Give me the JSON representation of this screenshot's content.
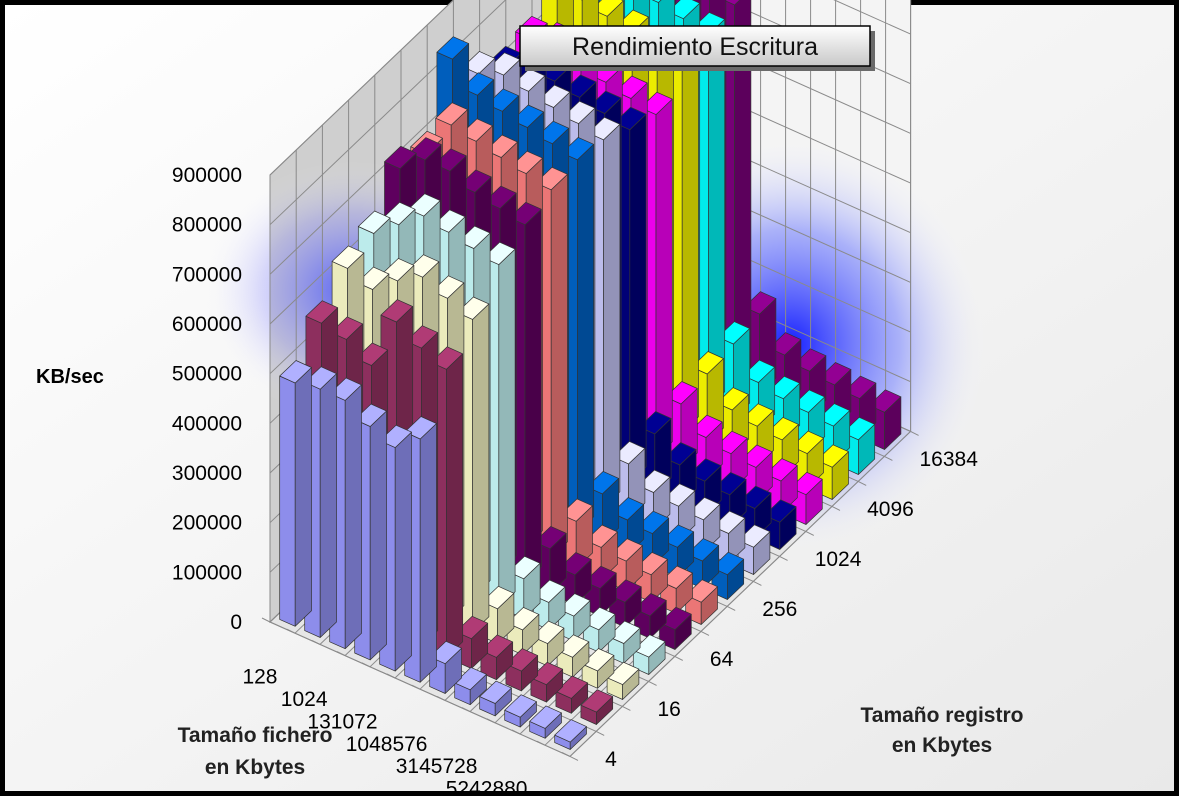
{
  "chart_data": {
    "type": "bar3d",
    "title": "Rendimiento Escritura",
    "ylabel": "KB/sec",
    "xlabel": "Tamaño fichero en Kbytes",
    "xlabel_lines": [
      "Tamaño fichero",
      "en Kbytes"
    ],
    "zlabel": "Tamaño registro en Kbytes",
    "zlabel_lines": [
      "Tamaño registro",
      "en Kbytes"
    ],
    "ylim": [
      0,
      900000
    ],
    "y_ticks": [
      "0",
      "100000",
      "200000",
      "300000",
      "400000",
      "500000",
      "600000",
      "700000",
      "800000",
      "900000"
    ],
    "file_size_labels": [
      "128",
      "1024",
      "131072",
      "1048576",
      "3145728",
      "5242880"
    ],
    "record_size_labels": [
      "4",
      "16",
      "64",
      "256",
      "1024",
      "4096",
      "16384"
    ],
    "rows": [
      {
        "record_kb": 4,
        "color": "#9999ff",
        "values": [
          490000,
          500000,
          500000,
          470000,
          450000,
          490000,
          60000,
          30000,
          25000,
          20000,
          20000,
          15000
        ]
      },
      {
        "record_kb": 8,
        "color": "#993366",
        "values": [
          560000,
          550000,
          520000,
          630000,
          600000,
          580000,
          60000,
          45000,
          40000,
          35000,
          30000,
          25000
        ]
      },
      {
        "record_kb": 16,
        "color": "#ffffcc",
        "values": [
          620000,
          600000,
          640000,
          670000,
          650000,
          630000,
          70000,
          50000,
          45000,
          40000,
          35000,
          30000
        ]
      },
      {
        "record_kb": 32,
        "color": "#ccffff",
        "values": [
          640000,
          680000,
          720000,
          710000,
          700000,
          690000,
          80000,
          55000,
          50000,
          45000,
          40000,
          35000
        ]
      },
      {
        "record_kb": 64,
        "color": "#660066",
        "values": [
          720000,
          760000,
          760000,
          740000,
          730000,
          720000,
          90000,
          60000,
          55000,
          50000,
          45000,
          40000
        ]
      },
      {
        "record_kb": 128,
        "color": "#ff8080",
        "values": [
          700000,
          780000,
          770000,
          760000,
          750000,
          740000,
          95000,
          65000,
          60000,
          55000,
          50000,
          45000
        ]
      },
      {
        "record_kb": 256,
        "color": "#0066cc",
        "values": [
          840000,
          790000,
          780000,
          770000,
          760000,
          750000,
          100000,
          70000,
          65000,
          60000,
          55000,
          50000
        ]
      },
      {
        "record_kb": 512,
        "color": "#ccccff",
        "values": [
          760000,
          780000,
          770000,
          760000,
          750000,
          740000,
          110000,
          75000,
          70000,
          65000,
          60000,
          55000
        ]
      },
      {
        "record_kb": 1024,
        "color": "#000080",
        "values": [
          720000,
          750000,
          740000,
          730000,
          720000,
          710000,
          120000,
          80000,
          70000,
          65000,
          60000,
          55000
        ]
      },
      {
        "record_kb": 2048,
        "color": "#ff00ff",
        "values": [
          730000,
          740000,
          720000,
          710000,
          700000,
          690000,
          130000,
          85000,
          75000,
          70000,
          65000,
          60000
        ]
      },
      {
        "record_kb": 4096,
        "color": "#ffff00",
        "values": [
          780000,
          780000,
          770000,
          760000,
          750000,
          740000,
          140000,
          90000,
          80000,
          75000,
          70000,
          65000
        ]
      },
      {
        "record_kb": 8192,
        "color": "#00ffff",
        "values": [
          780000,
          790000,
          780000,
          770000,
          760000,
          750000,
          150000,
          95000,
          85000,
          80000,
          75000,
          70000
        ]
      },
      {
        "record_kb": 16384,
        "color": "#800080",
        "values": [
          800000,
          800000,
          790000,
          780000,
          770000,
          760000,
          160000,
          100000,
          90000,
          85000,
          80000,
          75000
        ]
      }
    ],
    "grid": true,
    "legend": "none"
  }
}
